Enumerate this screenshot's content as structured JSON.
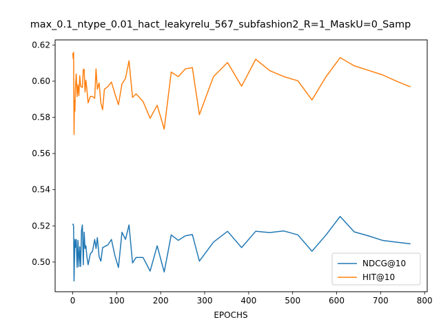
{
  "chart_data": {
    "type": "line",
    "title": "max_0.1_ntype_0.01_hact_leakyrelu_567_subfashion2_R=1_MaskU=0_Samp",
    "xlabel": "EPOCHS",
    "ylabel": "",
    "xlim": [
      -40,
      806
    ],
    "ylim": [
      0.4836,
      0.6228
    ],
    "xticks": [
      0,
      100,
      200,
      300,
      400,
      500,
      600,
      700,
      800
    ],
    "yticks": [
      0.5,
      0.52,
      0.54,
      0.56,
      0.58,
      0.6,
      0.62
    ],
    "ytick_labels": [
      "0.50",
      "0.52",
      "0.54",
      "0.56",
      "0.58",
      "0.60",
      "0.62"
    ],
    "grid": false,
    "legend_position": "lower-right",
    "colors": {
      "NDCG@10": "#1f77b4",
      "HIT@10": "#ff7f0e"
    },
    "series": [
      {
        "name": "NDCG@10",
        "color": "#1f77b4",
        "x": [
          0,
          1,
          2,
          3,
          5,
          6,
          8,
          10,
          12,
          14,
          16,
          18,
          20,
          22,
          24,
          26,
          28,
          30,
          32,
          35,
          40,
          45,
          50,
          53,
          56,
          60,
          64,
          68,
          72,
          80,
          88,
          96,
          104,
          112,
          120,
          128,
          136,
          144,
          160,
          176,
          192,
          208,
          224,
          240,
          256,
          272,
          288,
          320,
          352,
          384,
          416,
          448,
          480,
          512,
          544,
          576,
          608,
          640,
          672,
          704,
          736,
          768
        ],
        "y": [
          0.5205,
          0.521,
          0.5195,
          0.4895,
          0.5125,
          0.508,
          0.5125,
          0.497,
          0.512,
          0.4975,
          0.5085,
          0.4975,
          0.5175,
          0.5205,
          0.4985,
          0.5165,
          0.5075,
          0.509,
          0.5035,
          0.4985,
          0.5045,
          0.506,
          0.5125,
          0.5075,
          0.5135,
          0.503,
          0.5005,
          0.508,
          0.5085,
          0.5095,
          0.5125,
          0.5035,
          0.497,
          0.5165,
          0.5125,
          0.5205,
          0.4995,
          0.5025,
          0.5025,
          0.495,
          0.509,
          0.4945,
          0.515,
          0.512,
          0.5145,
          0.5152,
          0.5005,
          0.511,
          0.517,
          0.508,
          0.517,
          0.5163,
          0.5172,
          0.515,
          0.506,
          0.515,
          0.5252,
          0.5167,
          0.5145,
          0.512,
          0.511,
          0.5101
        ]
      },
      {
        "name": "HIT@10",
        "color": "#ff7f0e",
        "x": [
          0,
          1,
          2,
          3,
          4,
          5,
          6,
          8,
          10,
          12,
          14,
          16,
          18,
          20,
          22,
          24,
          26,
          28,
          30,
          32,
          35,
          40,
          45,
          50,
          53,
          56,
          60,
          64,
          68,
          72,
          80,
          88,
          96,
          104,
          112,
          120,
          128,
          136,
          144,
          160,
          176,
          192,
          208,
          224,
          240,
          256,
          272,
          288,
          320,
          352,
          384,
          416,
          448,
          480,
          512,
          544,
          576,
          608,
          640,
          672,
          704,
          736,
          768
        ],
        "y": [
          0.6155,
          0.6125,
          0.616,
          0.5705,
          0.5895,
          0.5835,
          0.5955,
          0.604,
          0.5915,
          0.598,
          0.592,
          0.603,
          0.597,
          0.597,
          0.5965,
          0.6065,
          0.6065,
          0.594,
          0.6005,
          0.596,
          0.588,
          0.5915,
          0.5915,
          0.5905,
          0.6068,
          0.5955,
          0.599,
          0.588,
          0.5842,
          0.5955,
          0.597,
          0.5995,
          0.593,
          0.587,
          0.5985,
          0.6015,
          0.6113,
          0.591,
          0.593,
          0.5887,
          0.5795,
          0.5867,
          0.5735,
          0.605,
          0.6025,
          0.6068,
          0.6075,
          0.5815,
          0.6025,
          0.6103,
          0.5972,
          0.6121,
          0.6058,
          0.6025,
          0.6002,
          0.5896,
          0.6025,
          0.613,
          0.6085,
          0.606,
          0.6035,
          0.6,
          0.5968
        ]
      }
    ]
  }
}
